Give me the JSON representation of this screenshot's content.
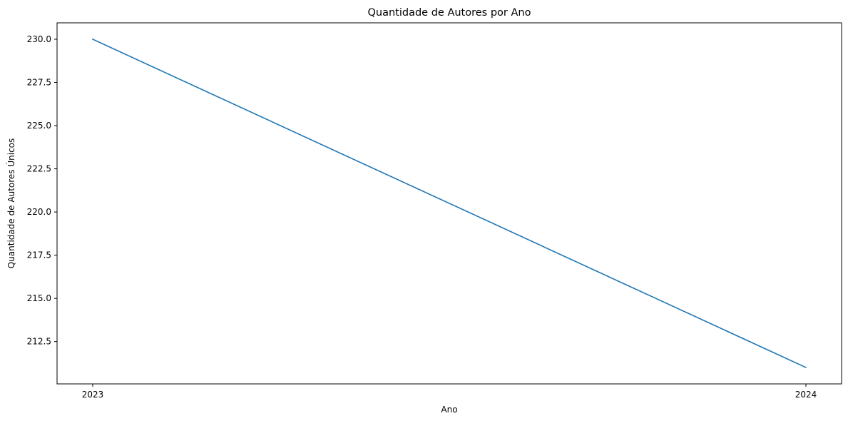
{
  "chart_data": {
    "type": "line",
    "title": "Quantidade de Autores por Ano",
    "xlabel": "Ano",
    "ylabel": "Quantidade de Autores Únicos",
    "x": [
      "2023",
      "2024"
    ],
    "series": [
      {
        "values": [
          230,
          211
        ],
        "color": "#1f77b4"
      }
    ],
    "xticks": [
      "2023",
      "2024"
    ],
    "yticks": [
      212.5,
      215.0,
      217.5,
      220.0,
      222.5,
      225.0,
      227.5,
      230.0
    ],
    "ytick_labels": [
      "212.5",
      "215.0",
      "217.5",
      "220.0",
      "222.5",
      "225.0",
      "227.5",
      "230.0"
    ],
    "xlim": [
      2022.95,
      2024.05
    ],
    "ylim": [
      210.05,
      230.95
    ],
    "grid": false,
    "legend": false
  }
}
